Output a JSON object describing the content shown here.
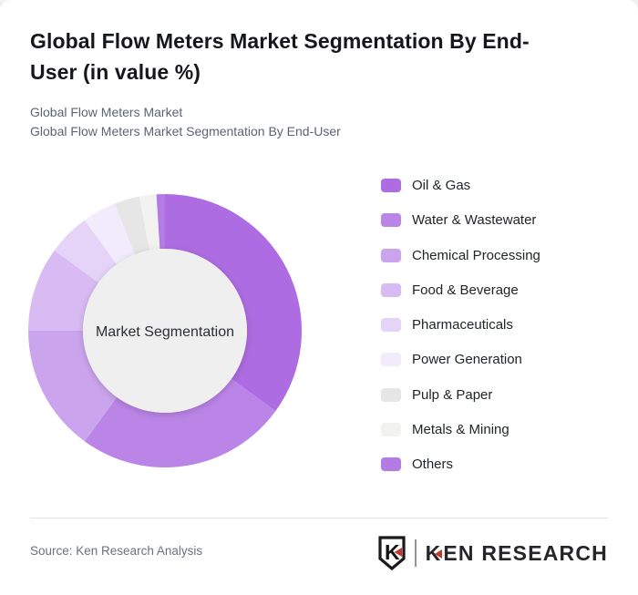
{
  "header": {
    "title_line1": "Global Flow Meters Market Segmentation By End-",
    "title_line2": "User (in value %)",
    "subtitle_line1": "Global Flow Meters Market",
    "subtitle_line2": "Global Flow Meters Market Segmentation By End-User"
  },
  "chart_data": {
    "type": "pie",
    "variant": "donut",
    "title": "Global Flow Meters Market Segmentation By End-User (in value %)",
    "center_label": "Market Segmentation",
    "categories": [
      "Oil & Gas",
      "Water & Wastewater",
      "Chemical Processing",
      "Food & Beverage",
      "Pharmaceuticals",
      "Power Generation",
      "Pulp & Paper",
      "Metals & Mining",
      "Others"
    ],
    "values": [
      35,
      25,
      15,
      10,
      5,
      4,
      3,
      2,
      1
    ],
    "unit": "value %",
    "colors": [
      "#ad6ce1",
      "#bb85e7",
      "#cba4ee",
      "#d8bbf3",
      "#e6d4f8",
      "#f2ebfb",
      "#e6e6e6",
      "#f2f2f0",
      "#b57be4"
    ],
    "start_angle_deg": 0,
    "direction": "clockwise",
    "inner_radius_ratio": 0.6,
    "legend_position": "right",
    "center_fill": "#efefef",
    "center_label_color": "#2b2e33"
  },
  "footer": {
    "source": "Source: Ken Research Analysis",
    "logo": {
      "mark": "K",
      "text_k": "K",
      "text_rest": "EN RESEARCH"
    }
  },
  "theme": {
    "accent": "#ad6ce1",
    "title_color": "#15171c",
    "subtitle_color": "#5b6472",
    "divider": "#e2e2e2",
    "logo_red": "#c0392b"
  }
}
